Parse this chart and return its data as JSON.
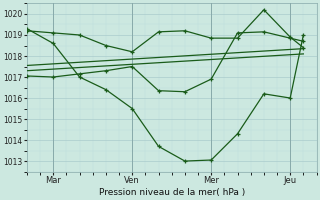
{
  "bg_color": "#cce8e0",
  "grid_color_major": "#aacccc",
  "grid_color_minor": "#bbdddd",
  "line_color": "#1a5c1a",
  "xlabel": "Pression niveau de la mer( hPa )",
  "ylim": [
    1012.5,
    1020.5
  ],
  "yticks": [
    1013,
    1014,
    1015,
    1016,
    1017,
    1018,
    1019,
    1020
  ],
  "xtick_labels": [
    "Mar",
    "Ven",
    "Mer",
    "Jeu"
  ],
  "xtick_positions": [
    1,
    4,
    7,
    10
  ],
  "xvlines": [
    1,
    4,
    7,
    10
  ],
  "xlim": [
    0,
    11
  ],
  "line1_x": [
    0,
    1,
    2,
    3,
    4,
    5,
    6,
    7,
    8,
    9,
    10,
    10.5
  ],
  "line1_y": [
    1019.3,
    1018.6,
    1017.0,
    1016.4,
    1015.5,
    1013.7,
    1013.0,
    1013.05,
    1014.3,
    1016.2,
    1016.0,
    1019.0
  ],
  "line2_x": [
    0,
    1,
    2,
    3,
    4,
    5,
    6,
    7,
    8,
    9,
    10,
    10.5
  ],
  "line2_y": [
    1017.05,
    1017.0,
    1017.15,
    1017.3,
    1017.5,
    1016.35,
    1016.3,
    1016.9,
    1019.1,
    1019.15,
    1018.85,
    1018.7
  ],
  "line3_x": [
    0,
    1,
    2,
    3,
    4,
    5,
    6,
    7,
    8,
    9,
    10,
    10.5
  ],
  "line3_y": [
    1019.2,
    1019.1,
    1019.0,
    1018.5,
    1018.2,
    1019.15,
    1019.2,
    1018.85,
    1018.85,
    1020.2,
    1018.9,
    1018.4
  ],
  "line4_x": [
    0,
    10.5
  ],
  "line4_y": [
    1017.3,
    1018.1
  ],
  "line5_x": [
    0,
    10.5
  ],
  "line5_y": [
    1017.55,
    1018.35
  ]
}
